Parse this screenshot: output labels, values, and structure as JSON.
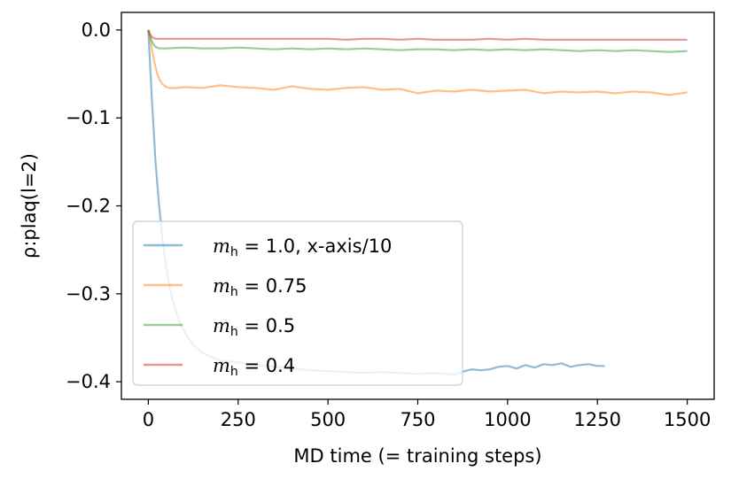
{
  "chart_data": {
    "type": "line",
    "xlabel": "MD time (= training steps)",
    "ylabel": "ρ:plaq(l=2)",
    "xlim": [
      -75,
      1575
    ],
    "ylim": [
      -0.42,
      0.02
    ],
    "xticks": [
      0,
      250,
      500,
      750,
      1000,
      1250,
      1500
    ],
    "xtick_labels": [
      "0",
      "250",
      "500",
      "750",
      "1000",
      "1250",
      "1500"
    ],
    "yticks": [
      0.0,
      -0.1,
      -0.2,
      -0.3,
      -0.4
    ],
    "ytick_labels": [
      "0.0",
      "−0.1",
      "−0.2",
      "−0.3",
      "−0.4"
    ],
    "grid": false,
    "legend_position": "lower-left",
    "series": [
      {
        "name": "m_h = 1.0, x-axis/10",
        "legend": {
          "sym": "m",
          "sub": "h",
          "rest": " = 1.0, x-axis/10"
        },
        "color": "#1f77b4",
        "opacity": 0.5,
        "x": [
          0,
          10,
          20,
          30,
          40,
          50,
          60,
          75,
          90,
          110,
          130,
          150,
          175,
          200,
          250,
          300,
          350,
          400,
          450,
          500,
          550,
          600,
          650,
          700,
          750,
          800,
          850,
          880,
          900,
          925,
          950,
          975,
          1000,
          1025,
          1050,
          1075,
          1100,
          1125,
          1150,
          1175,
          1200,
          1225,
          1250,
          1270
        ],
        "y": [
          0.0,
          -0.08,
          -0.15,
          -0.2,
          -0.24,
          -0.27,
          -0.295,
          -0.318,
          -0.335,
          -0.35,
          -0.36,
          -0.367,
          -0.372,
          -0.376,
          -0.378,
          -0.381,
          -0.383,
          -0.385,
          -0.387,
          -0.388,
          -0.389,
          -0.39,
          -0.389,
          -0.39,
          -0.391,
          -0.39,
          -0.392,
          -0.388,
          -0.386,
          -0.387,
          -0.386,
          -0.383,
          -0.382,
          -0.385,
          -0.381,
          -0.384,
          -0.38,
          -0.381,
          -0.379,
          -0.383,
          -0.381,
          -0.38,
          -0.382,
          -0.382
        ]
      },
      {
        "name": "m_h = 0.75",
        "legend": {
          "sym": "m",
          "sub": "h",
          "rest": " = 0.75"
        },
        "color": "#ff7f0e",
        "opacity": 0.5,
        "x": [
          0,
          5,
          10,
          15,
          20,
          25,
          30,
          40,
          50,
          60,
          80,
          100,
          150,
          200,
          250,
          300,
          350,
          400,
          450,
          500,
          550,
          600,
          650,
          700,
          750,
          800,
          850,
          900,
          950,
          1000,
          1050,
          1100,
          1150,
          1200,
          1250,
          1300,
          1350,
          1400,
          1450,
          1500
        ],
        "y": [
          0.0,
          -0.01,
          -0.022,
          -0.033,
          -0.042,
          -0.05,
          -0.056,
          -0.062,
          -0.065,
          -0.066,
          -0.066,
          -0.065,
          -0.066,
          -0.063,
          -0.065,
          -0.066,
          -0.068,
          -0.064,
          -0.067,
          -0.068,
          -0.066,
          -0.065,
          -0.068,
          -0.067,
          -0.072,
          -0.069,
          -0.07,
          -0.068,
          -0.07,
          -0.069,
          -0.068,
          -0.072,
          -0.07,
          -0.071,
          -0.07,
          -0.072,
          -0.07,
          -0.071,
          -0.074,
          -0.071
        ]
      },
      {
        "name": "m_h = 0.5",
        "legend": {
          "sym": "m",
          "sub": "h",
          "rest": " = 0.5"
        },
        "color": "#2ca02c",
        "opacity": 0.5,
        "x": [
          0,
          5,
          10,
          15,
          20,
          30,
          50,
          100,
          150,
          200,
          250,
          300,
          350,
          400,
          450,
          500,
          550,
          600,
          650,
          700,
          750,
          800,
          850,
          900,
          950,
          1000,
          1050,
          1100,
          1150,
          1200,
          1250,
          1300,
          1350,
          1400,
          1450,
          1500
        ],
        "y": [
          0.0,
          -0.007,
          -0.013,
          -0.017,
          -0.019,
          -0.021,
          -0.021,
          -0.02,
          -0.021,
          -0.021,
          -0.02,
          -0.021,
          -0.022,
          -0.021,
          -0.022,
          -0.021,
          -0.022,
          -0.021,
          -0.022,
          -0.023,
          -0.022,
          -0.022,
          -0.023,
          -0.022,
          -0.023,
          -0.022,
          -0.023,
          -0.022,
          -0.023,
          -0.024,
          -0.023,
          -0.024,
          -0.023,
          -0.024,
          -0.025,
          -0.024
        ]
      },
      {
        "name": "m_h = 0.4",
        "legend": {
          "sym": "m",
          "sub": "h",
          "rest": " = 0.4"
        },
        "color": "#d62728",
        "opacity": 0.5,
        "x": [
          0,
          5,
          10,
          15,
          20,
          30,
          50,
          100,
          150,
          200,
          250,
          300,
          350,
          400,
          450,
          500,
          550,
          600,
          650,
          700,
          750,
          800,
          850,
          900,
          950,
          1000,
          1050,
          1100,
          1150,
          1200,
          1250,
          1300,
          1350,
          1400,
          1450,
          1500
        ],
        "y": [
          0.0,
          -0.005,
          -0.008,
          -0.009,
          -0.01,
          -0.01,
          -0.01,
          -0.01,
          -0.01,
          -0.01,
          -0.01,
          -0.01,
          -0.01,
          -0.01,
          -0.01,
          -0.01,
          -0.011,
          -0.01,
          -0.01,
          -0.011,
          -0.01,
          -0.011,
          -0.011,
          -0.011,
          -0.01,
          -0.011,
          -0.01,
          -0.011,
          -0.011,
          -0.011,
          -0.011,
          -0.011,
          -0.011,
          -0.011,
          -0.011,
          -0.011
        ]
      }
    ]
  }
}
